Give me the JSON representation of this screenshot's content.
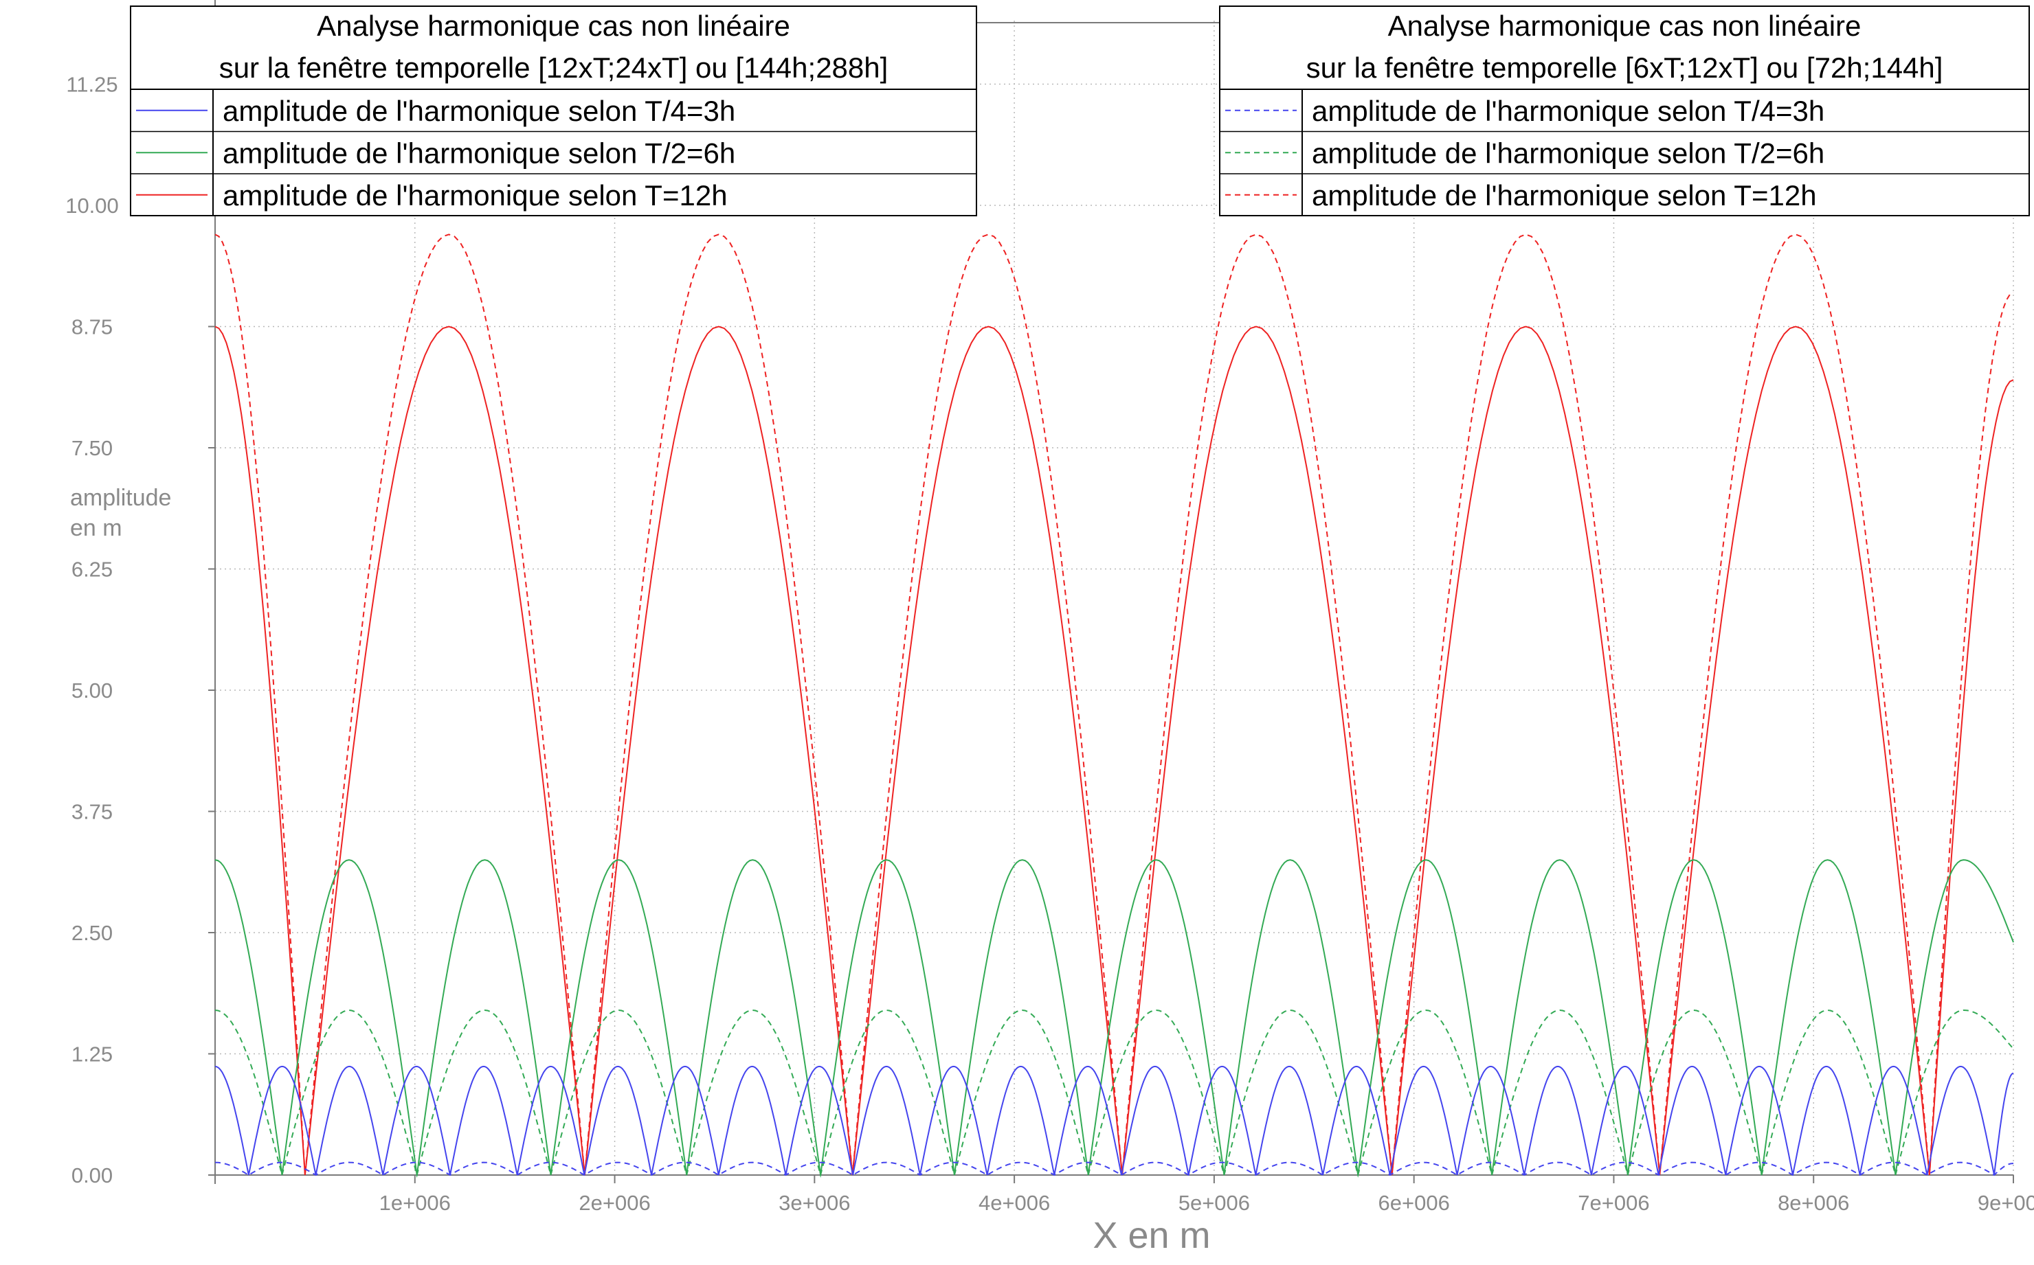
{
  "chart_data": {
    "type": "line",
    "xlabel": "X en m",
    "ylabel_lines": [
      "amplitude",
      "en m"
    ],
    "xlim": [
      0,
      9000000
    ],
    "ylim": [
      0,
      11.7
    ],
    "grid": true,
    "y_ticks": [
      {
        "value": 0,
        "label": "0.00"
      },
      {
        "value": 1.25,
        "label": "1.25"
      },
      {
        "value": 2.5,
        "label": "2.50"
      },
      {
        "value": 3.75,
        "label": "3.75"
      },
      {
        "value": 5,
        "label": "5.00"
      },
      {
        "value": 6.25,
        "label": "6.25"
      },
      {
        "value": 7.5,
        "label": "7.50"
      },
      {
        "value": 8.75,
        "label": "8.75"
      },
      {
        "value": 10,
        "label": "10.00"
      },
      {
        "value": 11.25,
        "label": "11.25"
      }
    ],
    "x_ticks": [
      {
        "value": 1000000,
        "label": "1e+006"
      },
      {
        "value": 2000000,
        "label": "2e+006"
      },
      {
        "value": 3000000,
        "label": "3e+006"
      },
      {
        "value": 4000000,
        "label": "4e+006"
      },
      {
        "value": 5000000,
        "label": "5e+006"
      },
      {
        "value": 6000000,
        "label": "6e+006"
      },
      {
        "value": 7000000,
        "label": "7e+006"
      },
      {
        "value": 8000000,
        "label": "8e+006"
      },
      {
        "value": 9000000,
        "label": "9e+006"
      }
    ],
    "legends": [
      {
        "position": "top-left",
        "title_lines": [
          "Analyse harmonique cas non linéaire",
          "sur la fenêtre temporelle [12xT;24xT] ou [144h;288h]"
        ],
        "entries": [
          {
            "label": "amplitude de l'harmonique selon T/4=3h",
            "color": "#4444ee",
            "dash": "solid"
          },
          {
            "label": "amplitude de l'harmonique selon T/2=6h",
            "color": "#33aa55",
            "dash": "solid"
          },
          {
            "label": "amplitude de l'harmonique selon T=12h",
            "color": "#ee2222",
            "dash": "solid"
          }
        ]
      },
      {
        "position": "top-right",
        "title_lines": [
          "Analyse harmonique cas non linéaire",
          "sur la fenêtre temporelle [6xT;12xT] ou [72h;144h]"
        ],
        "entries": [
          {
            "label": "amplitude de l'harmonique selon T/4=3h",
            "color": "#4444ee",
            "dash": "dashed"
          },
          {
            "label": "amplitude de l'harmonique selon T/2=6h",
            "color": "#33aa55",
            "dash": "dashed"
          },
          {
            "label": "amplitude de l'harmonique selon T=12h",
            "color": "#ee2222",
            "dash": "dashed"
          }
        ]
      }
    ],
    "series": [
      {
        "window": "[144h;288h]",
        "harmonic": "T=12h",
        "color": "#ee2222",
        "dash": "solid",
        "x": [
          0,
          450000,
          1170000,
          1850000,
          2520000,
          3190000,
          3870000,
          4540000,
          5210000,
          5890000,
          6560000,
          7230000,
          7910000,
          8580000,
          9000000
        ],
        "y": [
          8.75,
          0.0,
          8.75,
          0.0,
          8.75,
          0.0,
          8.75,
          0.0,
          8.75,
          0.0,
          8.75,
          0.0,
          8.75,
          0.0,
          8.2
        ]
      },
      {
        "window": "[72h;144h]",
        "harmonic": "T=12h",
        "color": "#ee2222",
        "dash": "dashed",
        "x": [
          0,
          450000,
          1170000,
          1850000,
          2520000,
          3190000,
          3870000,
          4540000,
          5210000,
          5890000,
          6560000,
          7230000,
          7910000,
          8580000,
          9000000
        ],
        "y": [
          9.7,
          0.0,
          9.7,
          0.0,
          9.7,
          0.0,
          9.7,
          0.0,
          9.7,
          0.0,
          9.7,
          0.0,
          9.7,
          0.0,
          9.1
        ]
      },
      {
        "window": "[144h;288h]",
        "harmonic": "T/2=6h",
        "color": "#33aa55",
        "dash": "solid",
        "x": [
          0,
          335000,
          670000,
          1010000,
          1350000,
          1680000,
          2020000,
          2360000,
          2690000,
          3030000,
          3360000,
          3700000,
          4040000,
          4370000,
          4710000,
          5050000,
          5380000,
          5720000,
          6060000,
          6390000,
          6730000,
          7070000,
          7400000,
          7740000,
          8070000,
          8410000,
          8750000,
          9000000
        ],
        "y": [
          3.25,
          0.0,
          3.25,
          0.0,
          3.25,
          0.0,
          3.25,
          0.0,
          3.25,
          0.0,
          3.25,
          0.0,
          3.25,
          0.0,
          3.25,
          0.0,
          3.25,
          0.0,
          3.25,
          0.0,
          3.25,
          0.0,
          3.25,
          0.0,
          3.25,
          0.0,
          3.25,
          2.4
        ]
      },
      {
        "window": "[72h;144h]",
        "harmonic": "T/2=6h",
        "color": "#33aa55",
        "dash": "dashed",
        "x": [
          0,
          335000,
          670000,
          1010000,
          1350000,
          1680000,
          2020000,
          2360000,
          2690000,
          3030000,
          3360000,
          3700000,
          4040000,
          4370000,
          4710000,
          5050000,
          5380000,
          5720000,
          6060000,
          6390000,
          6730000,
          7070000,
          7400000,
          7740000,
          8070000,
          8410000,
          8750000,
          9000000
        ],
        "y": [
          1.7,
          0.0,
          1.7,
          0.0,
          1.7,
          0.0,
          1.7,
          0.0,
          1.7,
          0.0,
          1.7,
          0.0,
          1.7,
          0.0,
          1.7,
          0.0,
          1.7,
          0.0,
          1.7,
          0.0,
          1.7,
          0.0,
          1.7,
          0.0,
          1.7,
          0.0,
          1.7,
          1.3
        ]
      },
      {
        "window": "[144h;288h]",
        "harmonic": "T/4=3h",
        "color": "#4444ee",
        "dash": "solid",
        "x": [
          0,
          168000,
          336000,
          504000,
          672000,
          840000,
          1008000,
          1176000,
          1344000,
          1512000,
          1680000,
          1848000,
          2016000,
          2184000,
          2352000,
          2520000,
          2688000,
          2856000,
          3024000,
          3192000,
          3360000,
          3528000,
          3696000,
          3864000,
          4032000,
          4200000,
          4368000,
          4536000,
          4704000,
          4872000,
          5040000,
          5208000,
          5376000,
          5544000,
          5712000,
          5880000,
          6048000,
          6216000,
          6384000,
          6552000,
          6720000,
          6888000,
          7056000,
          7224000,
          7392000,
          7560000,
          7728000,
          7896000,
          8064000,
          8232000,
          8400000,
          8568000,
          8736000,
          8904000,
          9000000
        ],
        "y": [
          1.12,
          0.0,
          1.12,
          0.0,
          1.12,
          0.0,
          1.12,
          0.0,
          1.12,
          0.0,
          1.12,
          0.0,
          1.12,
          0.0,
          1.12,
          0.0,
          1.12,
          0.0,
          1.12,
          0.0,
          1.12,
          0.0,
          1.12,
          0.0,
          1.12,
          0.0,
          1.12,
          0.0,
          1.12,
          0.0,
          1.12,
          0.0,
          1.12,
          0.0,
          1.12,
          0.0,
          1.12,
          0.0,
          1.12,
          0.0,
          1.12,
          0.0,
          1.12,
          0.0,
          1.12,
          0.0,
          1.12,
          0.0,
          1.12,
          0.0,
          1.12,
          0.0,
          1.12,
          0.0,
          1.05
        ]
      },
      {
        "window": "[72h;144h]",
        "harmonic": "T/4=3h",
        "color": "#4444ee",
        "dash": "dashed",
        "x": [
          0,
          168000,
          336000,
          504000,
          672000,
          840000,
          1008000,
          1176000,
          1344000,
          1512000,
          1680000,
          1848000,
          2016000,
          2184000,
          2352000,
          2520000,
          2688000,
          2856000,
          3024000,
          3192000,
          3360000,
          3528000,
          3696000,
          3864000,
          4032000,
          4200000,
          4368000,
          4536000,
          4704000,
          4872000,
          5040000,
          5208000,
          5376000,
          5544000,
          5712000,
          5880000,
          6048000,
          6216000,
          6384000,
          6552000,
          6720000,
          6888000,
          7056000,
          7224000,
          7392000,
          7560000,
          7728000,
          7896000,
          8064000,
          8232000,
          8400000,
          8568000,
          8736000,
          8904000,
          9000000
        ],
        "y": [
          0.13,
          0.0,
          0.13,
          0.0,
          0.13,
          0.0,
          0.13,
          0.0,
          0.13,
          0.0,
          0.13,
          0.0,
          0.13,
          0.0,
          0.13,
          0.0,
          0.13,
          0.0,
          0.13,
          0.0,
          0.13,
          0.0,
          0.13,
          0.0,
          0.13,
          0.0,
          0.13,
          0.0,
          0.13,
          0.0,
          0.13,
          0.0,
          0.13,
          0.0,
          0.13,
          0.0,
          0.13,
          0.0,
          0.13,
          0.0,
          0.13,
          0.0,
          0.13,
          0.0,
          0.13,
          0.0,
          0.13,
          0.0,
          0.13,
          0.0,
          0.13,
          0.0,
          0.13,
          0.0,
          0.12
        ]
      }
    ]
  }
}
